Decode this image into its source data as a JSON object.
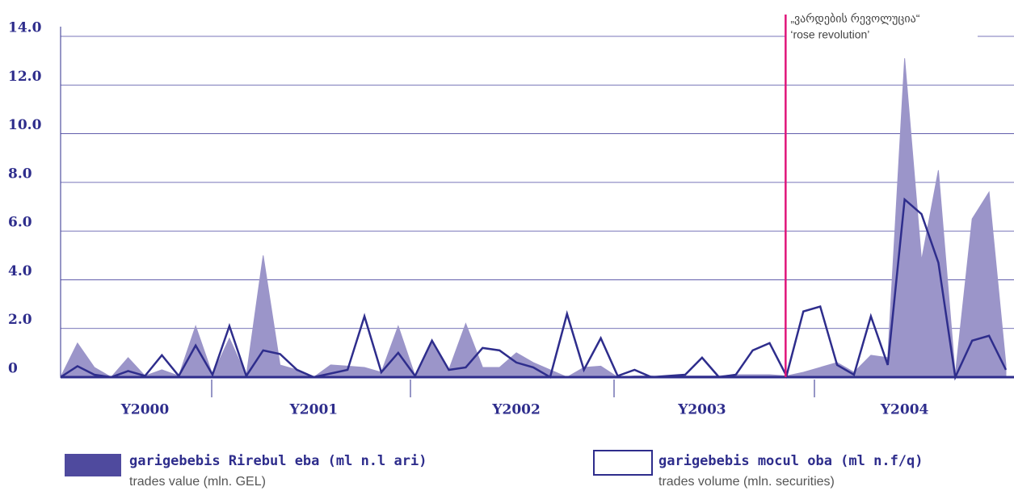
{
  "chart_data": {
    "type": "area_line",
    "categories": [
      null,
      null,
      null,
      null,
      null,
      "Y2000",
      null,
      null,
      null,
      null,
      null,
      null,
      null,
      null,
      null,
      "Y2001",
      null,
      null,
      null,
      null,
      null,
      null,
      null,
      null,
      null,
      null,
      null,
      "Y2002",
      null,
      null,
      null,
      null,
      null,
      null,
      null,
      null,
      null,
      null,
      "Y2003",
      null,
      null,
      null,
      null,
      null,
      null,
      null,
      null,
      null,
      null,
      null,
      "Y2004",
      null,
      null,
      null,
      null,
      null,
      null
    ],
    "series": [
      {
        "name": "garigebebis Rirebul eba (ml n.l ari)",
        "subtitle": "trades value (mln. GEL)",
        "color": "#9b95c9",
        "kind": "area",
        "values": [
          0,
          1.4,
          0.4,
          0,
          0.8,
          0.05,
          0.3,
          0.05,
          2.1,
          0.1,
          1.6,
          0.05,
          5.0,
          0.5,
          0.3,
          0,
          0.5,
          0.45,
          0.4,
          0.2,
          2.1,
          0.05,
          1.5,
          0.3,
          2.2,
          0.4,
          0.4,
          1.0,
          0.6,
          0.3,
          0,
          0.4,
          0.45,
          0,
          0.05,
          0.05,
          0,
          0.05,
          0.05,
          0.05,
          0.1,
          0.1,
          0.1,
          0.05,
          0.2,
          0.4,
          0.6,
          0.2,
          0.9,
          0.8,
          13.1,
          4.8,
          8.5,
          0.1,
          6.5,
          7.6,
          0.5
        ]
      },
      {
        "name": "garigebebis mocul oba (ml n.f/q)",
        "subtitle": "trades volume (mln. securities)",
        "color": "#2e2d8c",
        "kind": "line",
        "values": [
          0,
          0.45,
          0.1,
          0,
          0.25,
          0.05,
          0.9,
          0.05,
          1.3,
          0.1,
          2.1,
          0.05,
          1.1,
          0.95,
          0.3,
          0,
          0.15,
          0.3,
          2.5,
          0.2,
          1.0,
          0.05,
          1.5,
          0.3,
          0.4,
          1.2,
          1.1,
          0.6,
          0.4,
          0,
          2.6,
          0.3,
          1.6,
          0.05,
          0.3,
          0,
          0.05,
          0.1,
          0.8,
          0,
          0.1,
          1.1,
          1.4,
          0.05,
          2.7,
          2.9,
          0.5,
          0.1,
          2.5,
          0.5,
          7.3,
          6.7,
          4.7,
          0,
          1.5,
          1.7,
          0.3
        ]
      }
    ],
    "ylim": [
      0,
      14
    ],
    "yticks": [
      0,
      {
        "value": 2,
        "label": "2.0"
      },
      {
        "value": 4,
        "label": "4.0"
      },
      {
        "value": 6,
        "label": "6.0"
      },
      {
        "value": 8,
        "label": "8.0"
      },
      {
        "value": 10,
        "label": "10.0"
      },
      {
        "value": 12,
        "label": "12.0"
      },
      {
        "value": 14,
        "label": "14.0"
      }
    ],
    "grid": true,
    "annotation": {
      "lines": [
        "„ვარდების რევოლუცია“",
        "‘rose revolution’"
      ],
      "color": "#e0157a"
    }
  }
}
